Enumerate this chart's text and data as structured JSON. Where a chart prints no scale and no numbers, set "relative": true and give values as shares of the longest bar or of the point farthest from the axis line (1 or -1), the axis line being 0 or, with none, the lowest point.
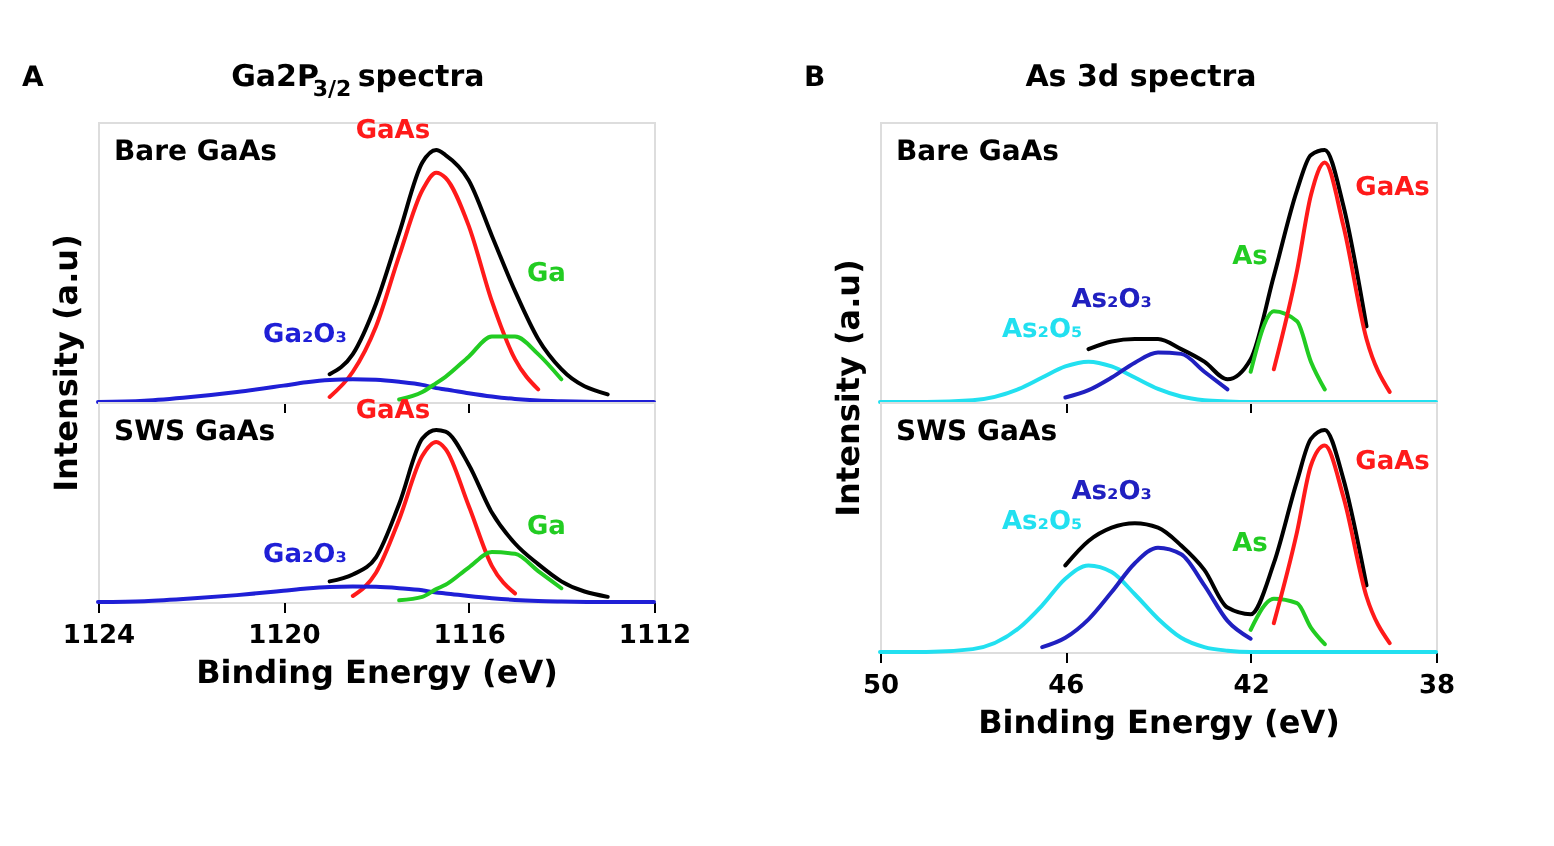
{
  "chart_data": [
    {
      "type": "line",
      "title": "Ga2P$_{3/2}$ spectra",
      "annotations": [
        "Bare GaAs",
        "A"
      ],
      "relative": true,
      "xlim": [
        1124,
        1112
      ],
      "xticks": [
        1124,
        1120,
        1116,
        1112
      ],
      "tick_labels": false,
      "x": [
        1124,
        1123,
        1122,
        1121,
        1120,
        1119.5,
        1119,
        1118.5,
        1118,
        1117.5,
        1117,
        1116.7,
        1116.5,
        1116,
        1115.5,
        1115,
        1114.5,
        1114,
        1113,
        1112
      ],
      "series": [
        {
          "color": "#000000",
          "values": [
            null,
            null,
            null,
            null,
            null,
            null,
            0.11,
            0.19,
            0.39,
            0.67,
            0.95,
            1.0,
            0.98,
            0.88,
            0.66,
            0.44,
            0.25,
            0.13,
            0.03,
            null
          ]
        },
        {
          "name": "GaAs",
          "color": "#ff1a1a",
          "values": [
            null,
            null,
            null,
            null,
            null,
            null,
            0.02,
            0.12,
            0.3,
            0.58,
            0.84,
            0.91,
            0.89,
            0.7,
            0.4,
            0.17,
            0.05,
            null,
            null,
            null
          ]
        },
        {
          "name": "Ga₂O₃",
          "color": "#1f1fd6",
          "values": [
            0,
            0.005,
            0.02,
            0.04,
            0.065,
            0.078,
            0.087,
            0.09,
            0.088,
            0.08,
            0.068,
            0.055,
            0.05,
            0.035,
            0.022,
            0.012,
            0.006,
            0.003,
            0,
            0
          ]
        },
        {
          "name": "Ga",
          "color": "#22cc22",
          "values": [
            null,
            null,
            null,
            null,
            null,
            null,
            null,
            null,
            null,
            0.01,
            0.04,
            0.075,
            0.1,
            0.18,
            0.26,
            0.26,
            0.19,
            0.09,
            null,
            null
          ]
        }
      ]
    },
    {
      "type": "line",
      "title": "As 3d spectra",
      "annotations": [
        "Bare GaAs",
        "B"
      ],
      "relative": true,
      "xlim": [
        50,
        38
      ],
      "xticks": [
        50,
        46,
        42,
        38
      ],
      "tick_labels": false,
      "x": [
        50,
        49,
        48,
        47,
        46.5,
        46,
        45.5,
        45,
        44.5,
        44,
        43.5,
        43,
        42.5,
        42,
        41.5,
        41,
        40.7,
        40.4,
        40,
        39.5,
        39,
        38.5,
        38
      ],
      "series": [
        {
          "color": "#000000",
          "values": [
            null,
            null,
            null,
            null,
            null,
            null,
            0.21,
            0.24,
            0.25,
            0.25,
            0.21,
            0.16,
            0.09,
            0.17,
            0.5,
            0.84,
            0.98,
            1.0,
            0.78,
            0.3,
            null,
            null,
            null
          ]
        },
        {
          "name": "As₂O₅",
          "color": "#22e0f0",
          "values": [
            0,
            0,
            0.007,
            0.052,
            0.097,
            0.141,
            0.16,
            0.141,
            0.097,
            0.052,
            0.022,
            0.007,
            0.002,
            0,
            0,
            0,
            0,
            0,
            0,
            0,
            0,
            0,
            0
          ]
        },
        {
          "name": "As₂O₃",
          "color": "#2020c0",
          "values": [
            null,
            null,
            null,
            null,
            null,
            0.018,
            0.047,
            0.097,
            0.156,
            0.196,
            0.191,
            0.12,
            0.05,
            null,
            null,
            null,
            null,
            null,
            null,
            null,
            null,
            null,
            null
          ]
        },
        {
          "name": "As",
          "color": "#22cc22",
          "values": [
            null,
            null,
            null,
            null,
            null,
            null,
            null,
            null,
            null,
            null,
            null,
            null,
            null,
            0.12,
            0.36,
            0.32,
            0.16,
            0.05,
            null,
            null,
            null,
            null,
            null
          ]
        },
        {
          "name": "GaAs",
          "color": "#ff1a1a",
          "values": [
            null,
            null,
            null,
            null,
            null,
            null,
            null,
            null,
            null,
            null,
            null,
            null,
            null,
            null,
            0.13,
            0.52,
            0.82,
            0.95,
            0.7,
            0.25,
            0.04,
            null,
            null
          ]
        }
      ]
    },
    {
      "type": "line",
      "annotations": [
        "SWS GaAs"
      ],
      "xlabel": "Binding Energy (eV)",
      "ylabel": "Intensity (a.u)",
      "relative": true,
      "xlim": [
        1124,
        1112
      ],
      "xticks": [
        1124,
        1120,
        1116,
        1112
      ],
      "tick_labels": "x",
      "x": [
        1124,
        1123,
        1122,
        1121,
        1120,
        1119.5,
        1119,
        1118.5,
        1118,
        1117.5,
        1117,
        1116.7,
        1116.5,
        1116,
        1115.5,
        1115,
        1114.5,
        1114,
        1113,
        1112
      ],
      "series": [
        {
          "color": "#000000",
          "values": [
            null,
            null,
            null,
            null,
            null,
            null,
            0.12,
            0.16,
            0.26,
            0.57,
            0.95,
            1.0,
            0.99,
            0.8,
            0.52,
            0.34,
            0.22,
            0.12,
            0.03,
            null
          ]
        },
        {
          "name": "GaAs",
          "color": "#ff1a1a",
          "values": [
            null,
            null,
            null,
            null,
            null,
            null,
            null,
            0.035,
            0.17,
            0.48,
            0.85,
            0.93,
            0.89,
            0.56,
            0.21,
            0.05,
            null,
            null,
            null,
            null
          ]
        },
        {
          "name": "Ga₂O₃",
          "color": "#1f1fd6",
          "values": [
            0,
            0.005,
            0.02,
            0.04,
            0.065,
            0.078,
            0.087,
            0.09,
            0.088,
            0.08,
            0.068,
            0.055,
            0.05,
            0.035,
            0.022,
            0.012,
            0.006,
            0.003,
            0,
            0
          ]
        },
        {
          "name": "Ga",
          "color": "#22cc22",
          "values": [
            null,
            null,
            null,
            null,
            null,
            null,
            null,
            null,
            null,
            0.01,
            0.03,
            0.075,
            0.1,
            0.2,
            0.29,
            0.28,
            0.18,
            0.08,
            null,
            null
          ]
        }
      ]
    },
    {
      "type": "line",
      "annotations": [
        "SWS GaAs"
      ],
      "xlabel": "Binding Energy (eV)",
      "ylabel": "Intensity (a.u)",
      "relative": true,
      "xlim": [
        50,
        38
      ],
      "xticks": [
        50,
        46,
        42,
        38
      ],
      "tick_labels": "x",
      "x": [
        50,
        49,
        48,
        47,
        46.5,
        46,
        45.5,
        45,
        44.5,
        44,
        43.5,
        43,
        42.5,
        42,
        41.5,
        41,
        40.7,
        40.4,
        40,
        39.5,
        39,
        38.5,
        38
      ],
      "series": [
        {
          "color": "#000000",
          "values": [
            null,
            null,
            null,
            null,
            null,
            0.39,
            0.5,
            0.56,
            0.58,
            0.56,
            0.48,
            0.37,
            0.2,
            0.17,
            0.4,
            0.77,
            0.96,
            1.0,
            0.78,
            0.3,
            null,
            null,
            null
          ]
        },
        {
          "name": "As₂O₅",
          "color": "#22e0f0",
          "values": [
            0,
            0,
            0.013,
            0.108,
            0.21,
            0.33,
            0.39,
            0.36,
            0.26,
            0.15,
            0.064,
            0.022,
            0.006,
            0,
            0,
            0,
            0,
            0,
            0,
            0,
            0,
            0,
            0
          ]
        },
        {
          "name": "As₂O₃",
          "color": "#2020c0",
          "values": [
            null,
            null,
            null,
            null,
            0.022,
            0.064,
            0.147,
            0.27,
            0.4,
            0.47,
            0.44,
            0.3,
            0.14,
            0.06,
            null,
            null,
            null,
            null,
            null,
            null,
            null,
            null,
            null
          ]
        },
        {
          "name": "As",
          "color": "#22cc22",
          "values": [
            null,
            null,
            null,
            null,
            null,
            null,
            null,
            null,
            null,
            null,
            null,
            null,
            null,
            0.1,
            0.24,
            0.22,
            0.11,
            0.035,
            null,
            null,
            null,
            null,
            null
          ]
        },
        {
          "name": "GaAs",
          "color": "#ff1a1a",
          "values": [
            null,
            null,
            null,
            null,
            null,
            null,
            null,
            null,
            null,
            null,
            null,
            null,
            null,
            null,
            0.13,
            0.54,
            0.84,
            0.93,
            0.7,
            0.25,
            0.04,
            null,
            null
          ]
        }
      ]
    }
  ]
}
